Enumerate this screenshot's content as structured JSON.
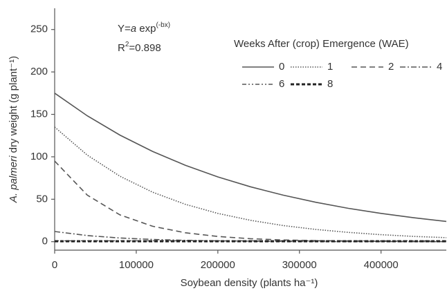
{
  "chart_data": {
    "type": "line",
    "equation": {
      "lhs": "Y=",
      "a": "a",
      "exp": " exp",
      "sup": "(-bx)"
    },
    "r2": {
      "r": "R",
      "sup": "2",
      "rest": "=0.898"
    },
    "x_label": "Soybean density (plants ha⁻¹)",
    "y_label": {
      "italic": "A. palmeri",
      "rest": " dry weight (g plant⁻¹)"
    },
    "legend_title": "Weeks After (crop) Emergence (WAE)",
    "x": [
      0,
      40000,
      80000,
      120000,
      160000,
      200000,
      240000,
      280000,
      320000,
      360000,
      400000,
      440000,
      480000
    ],
    "series": [
      {
        "name": "0",
        "color": "#555555",
        "dash": "none",
        "width": 1.6,
        "values": [
          175,
          148.3,
          125.6,
          106.4,
          90.1,
          76.3,
          64.7,
          54.8,
          46.4,
          39.3,
          33.3,
          28.2,
          23.9
        ]
      },
      {
        "name": "1",
        "color": "#555555",
        "dash": "1.5 2",
        "width": 1.6,
        "values": [
          135,
          102.0,
          77.1,
          58.3,
          44.1,
          33.3,
          25.2,
          19.0,
          14.4,
          10.9,
          8.2,
          6.2,
          4.7
        ]
      },
      {
        "name": "2",
        "color": "#555555",
        "dash": "8 5",
        "width": 1.6,
        "values": [
          95,
          54.8,
          31.6,
          18.2,
          10.5,
          6.1,
          3.5,
          2.0,
          1.2,
          0.7,
          0.4,
          0.2,
          0.1
        ]
      },
      {
        "name": "4",
        "color": "#555555",
        "dash": "8 3 2 3",
        "width": 1.6,
        "values": [
          12,
          7.2,
          4.3,
          2.6,
          1.6,
          0.9,
          0.6,
          0.3,
          0.2,
          0.1,
          0.1,
          0,
          0
        ]
      },
      {
        "name": "6",
        "color": "#555555",
        "dash": "6 3 2 3 2 3",
        "width": 1.6,
        "values": [
          1,
          1,
          1,
          1,
          1,
          1,
          1,
          1,
          1,
          1,
          1,
          1,
          1
        ]
      },
      {
        "name": "8",
        "color": "#222222",
        "dash": "5 3",
        "width": 3,
        "values": [
          0.5,
          0.5,
          0.5,
          0.5,
          0.5,
          0.5,
          0.5,
          0.5,
          0.5,
          0.5,
          0.5,
          0.5,
          0.5
        ]
      }
    ],
    "xlim": [
      0,
      480000
    ],
    "ylim": [
      -10,
      275
    ],
    "xticks": [
      0,
      100000,
      200000,
      300000,
      400000
    ],
    "yticks": [
      0,
      50,
      100,
      150,
      200,
      250
    ],
    "grid": false
  }
}
